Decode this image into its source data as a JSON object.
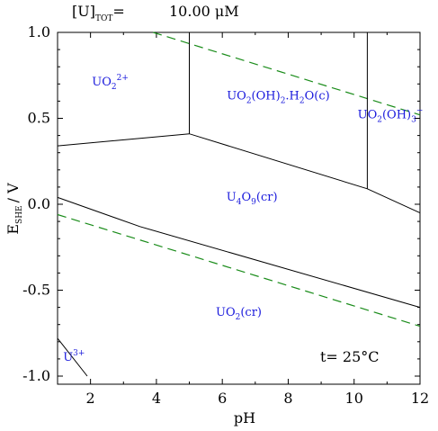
{
  "header": {
    "label_main": "[U]",
    "label_sub": "TOT",
    "label_eq": "=",
    "concentration": "10.00 μM"
  },
  "chart_data": {
    "type": "line",
    "title": "",
    "xlabel": "pH",
    "ylabel_main": "E",
    "ylabel_sub": "SHE",
    "ylabel_unit": "/ V",
    "xlim": [
      1,
      12
    ],
    "ylim": [
      -1.05,
      1.0
    ],
    "xticks": [
      2,
      4,
      6,
      8,
      10,
      12
    ],
    "yticks": [
      {
        "value": 1.0,
        "label": "1.0"
      },
      {
        "value": 0.5,
        "label": "0.5"
      },
      {
        "value": 0.0,
        "label": "0.0"
      },
      {
        "value": -0.5,
        "label": "-0.5"
      },
      {
        "value": -1.0,
        "label": "-1.0"
      }
    ],
    "temperature_label": "t= 25°C",
    "species_color": "#1a1adc",
    "boundary_color": "#000000",
    "water_line_color": "#1a8c1a",
    "boundaries": [
      {
        "name": "uo2-2plus-to-u4o9",
        "points": [
          [
            1.0,
            0.34
          ],
          [
            5.0,
            0.41
          ],
          [
            10.4,
            0.09
          ],
          [
            12.0,
            -0.05
          ]
        ]
      },
      {
        "name": "uo2-2plus-to-uo2oh2",
        "points": [
          [
            5.0,
            0.41
          ],
          [
            5.0,
            1.0
          ]
        ]
      },
      {
        "name": "uo2oh2-to-uo2oh3",
        "points": [
          [
            10.4,
            0.09
          ],
          [
            10.4,
            1.0
          ]
        ]
      },
      {
        "name": "u4o9-to-uo2",
        "points": [
          [
            1.0,
            0.04
          ],
          [
            3.5,
            -0.13
          ],
          [
            12.0,
            -0.6
          ]
        ]
      },
      {
        "name": "u3plus-to-uo2",
        "points": [
          [
            1.0,
            -0.78
          ],
          [
            1.9,
            -1.0
          ]
        ]
      }
    ],
    "water_lines": [
      {
        "name": "o2-stability-line",
        "points": [
          [
            3.9,
            1.0
          ],
          [
            12.0,
            0.52
          ]
        ]
      },
      {
        "name": "h2-stability-line",
        "points": [
          [
            1.0,
            -0.06
          ],
          [
            12.0,
            -0.71
          ]
        ]
      }
    ],
    "species": [
      {
        "name": "species-uo2-2plus",
        "parts": [
          {
            "t": "UO"
          },
          {
            "t": "2",
            "sub": true
          },
          {
            "t": "2+",
            "sup": true
          }
        ],
        "x": 2.6,
        "y": 0.69
      },
      {
        "name": "species-uo2oh2-h2o",
        "parts": [
          {
            "t": "UO"
          },
          {
            "t": "2",
            "sub": true
          },
          {
            "t": "(OH)"
          },
          {
            "t": "2",
            "sub": true
          },
          {
            "t": ".H"
          },
          {
            "t": "2",
            "sub": true
          },
          {
            "t": "O(c)"
          }
        ],
        "x": 7.7,
        "y": 0.61
      },
      {
        "name": "species-uo2oh3-minus",
        "parts": [
          {
            "t": "UO"
          },
          {
            "t": "2",
            "sub": true
          },
          {
            "t": "(OH)"
          },
          {
            "t": "3",
            "sub": true
          },
          {
            "t": "−",
            "sup": true
          }
        ],
        "x": 11.1,
        "y": 0.5
      },
      {
        "name": "species-u4o9",
        "parts": [
          {
            "t": "U"
          },
          {
            "t": "4",
            "sub": true
          },
          {
            "t": "O"
          },
          {
            "t": "9",
            "sub": true
          },
          {
            "t": "(cr)"
          }
        ],
        "x": 6.9,
        "y": 0.02
      },
      {
        "name": "species-uo2-cr",
        "parts": [
          {
            "t": "UO"
          },
          {
            "t": "2",
            "sub": true
          },
          {
            "t": "(cr)"
          }
        ],
        "x": 6.5,
        "y": -0.65
      },
      {
        "name": "species-u3plus",
        "parts": [
          {
            "t": "U"
          },
          {
            "t": "3+",
            "sup": true
          }
        ],
        "x": 1.5,
        "y": -0.91
      }
    ]
  }
}
